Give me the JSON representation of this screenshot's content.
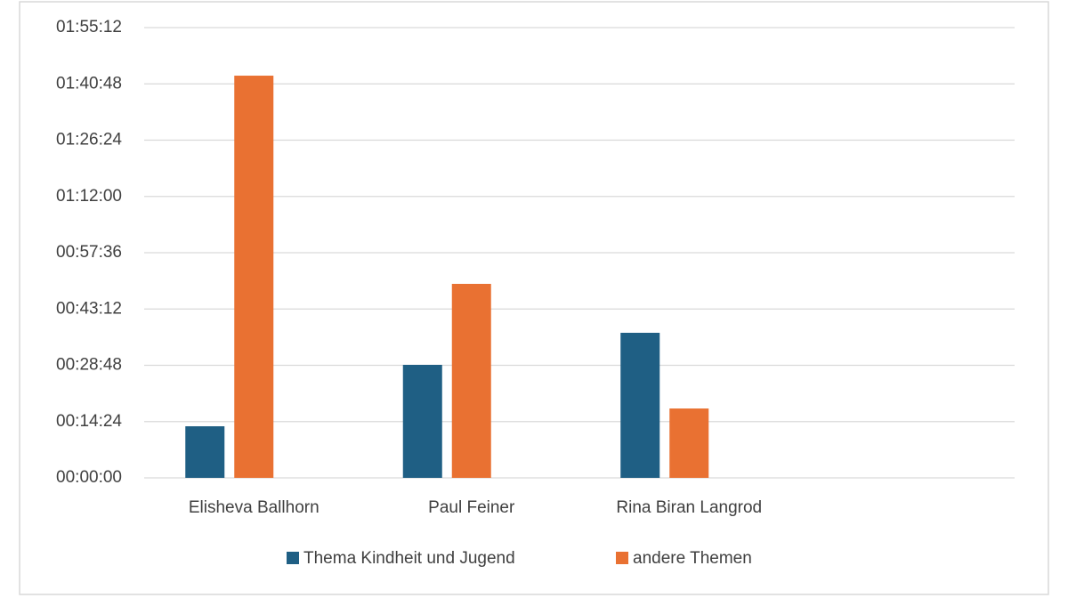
{
  "chart_data": {
    "type": "bar",
    "categories": [
      "Elisheva Ballhorn",
      "Paul Feiner",
      "Rina Biran Langrod",
      null
    ],
    "series": [
      {
        "name": "Thema Kindheit und Jugend",
        "color": "#1f5f84",
        "values": [
          792,
          1735,
          2227,
          null
        ]
      },
      {
        "name": "andere Themen",
        "color": "#e97132",
        "values": [
          6174,
          2978,
          1065,
          null
        ]
      }
    ],
    "ylim": [
      0,
      6912
    ],
    "yticks": [
      {
        "value": 0,
        "label": "00:00:00"
      },
      {
        "value": 864,
        "label": "00:14:24"
      },
      {
        "value": 1728,
        "label": "00:28:48"
      },
      {
        "value": 2592,
        "label": "00:43:12"
      },
      {
        "value": 3456,
        "label": "00:57:36"
      },
      {
        "value": 4320,
        "label": "01:12:00"
      },
      {
        "value": 5184,
        "label": "01:26:24"
      },
      {
        "value": 6048,
        "label": "01:40:48"
      },
      {
        "value": 6912,
        "label": "01:55:12"
      }
    ],
    "grid": true,
    "legend": "bottom"
  }
}
